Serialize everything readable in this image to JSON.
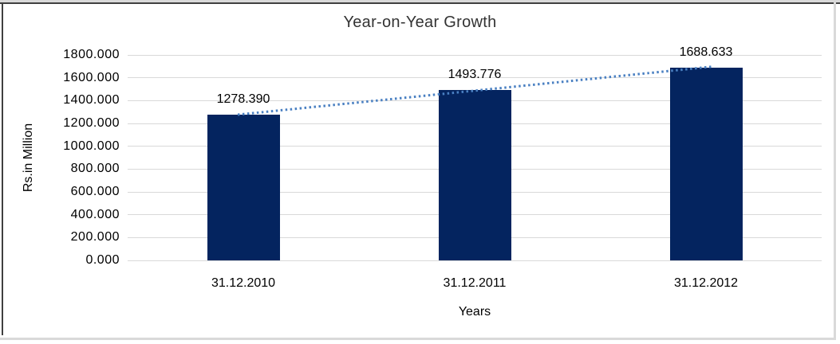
{
  "chart_data": {
    "type": "bar",
    "title": "Year-on-Year Growth",
    "xlabel": "Years",
    "ylabel": "Rs.in Million",
    "categories": [
      "31.12.2010",
      "31.12.2011",
      "31.12.2012"
    ],
    "values": [
      1278.39,
      1493.776,
      1688.633
    ],
    "data_labels": [
      "1278.390",
      "1493.776",
      "1688.633"
    ],
    "ylim": [
      0,
      1800
    ],
    "ytick_step": 200,
    "ytick_labels": [
      "0.000",
      "200.000",
      "400.000",
      "600.000",
      "800.000",
      "1000.000",
      "1200.000",
      "1400.000",
      "1600.000",
      "1800.000"
    ],
    "grid": true,
    "legend": "none",
    "trendline": "linear-dotted",
    "colors": {
      "bar": "#04245f",
      "trendline": "#4a80c2",
      "gridline": "#d9d9d9",
      "title_text": "#333333",
      "axis_text": "#000000",
      "frame_dark": "#404040",
      "frame_light": "#d9d9d9",
      "background": "#ffffff"
    }
  }
}
